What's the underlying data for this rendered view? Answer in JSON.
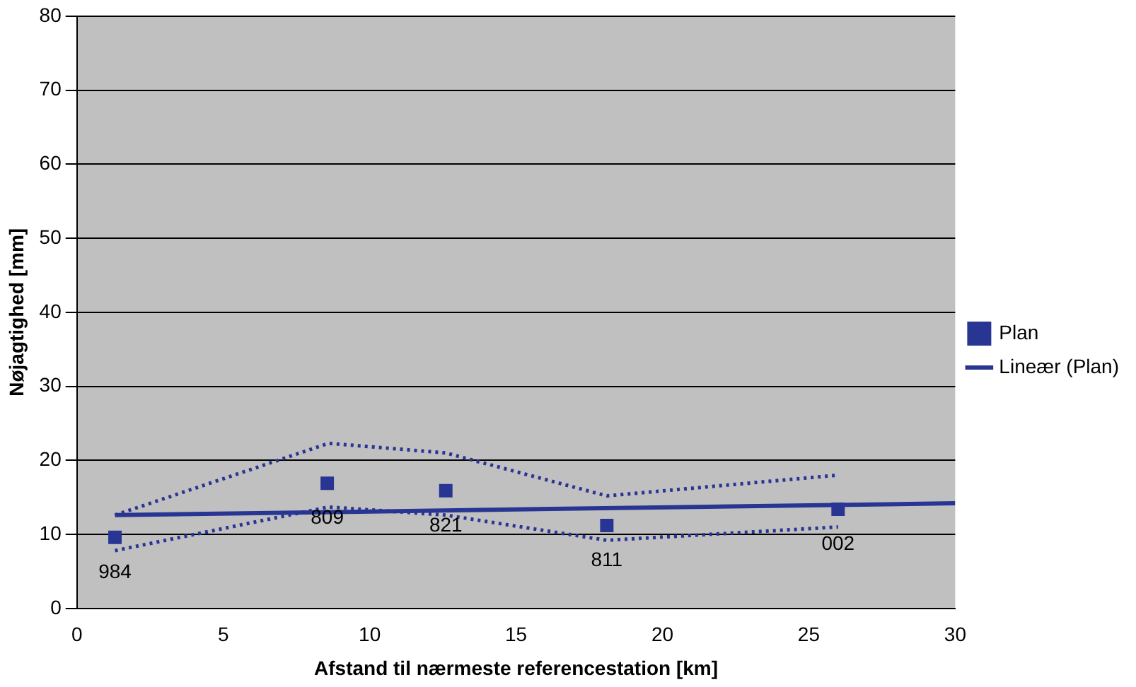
{
  "chart_data": {
    "type": "scatter",
    "xlabel": "Afstand til nærmeste referencestation [km]",
    "ylabel": "Nøjagtighed [mm]",
    "xlim": [
      0,
      30
    ],
    "xticks": [
      0,
      5,
      10,
      15,
      20,
      25,
      30
    ],
    "ylim": [
      0,
      80
    ],
    "yticks": [
      0,
      10,
      20,
      30,
      40,
      50,
      60,
      70,
      80
    ],
    "grid": "y",
    "legend": "right",
    "series": [
      {
        "name": "Plan",
        "type": "scatter",
        "marker": "square",
        "color": "#283593",
        "x": [
          1.3,
          8.55,
          12.6,
          18.1,
          26.0
        ],
        "values": [
          9.6,
          16.9,
          15.9,
          11.2,
          13.4
        ]
      },
      {
        "name": "Lineær (Plan)",
        "type": "line",
        "marker": "none",
        "line_style": "solid",
        "color": "#283593",
        "x": [
          1.3,
          30
        ],
        "values": [
          12.6,
          14.2
        ]
      },
      {
        "type": "line",
        "marker": "none",
        "line_style": "dotted",
        "color": "#283593",
        "x": [
          1.3,
          8.6,
          12.6,
          18.1,
          26.0
        ],
        "values": [
          12.6,
          22.3,
          21.0,
          15.2,
          18.0
        ]
      },
      {
        "type": "line",
        "marker": "none",
        "line_style": "dotted",
        "color": "#283593",
        "x": [
          1.3,
          8.6,
          12.6,
          18.1,
          26.0
        ],
        "values": [
          7.8,
          13.7,
          12.6,
          9.2,
          11.0
        ]
      }
    ],
    "annotations": [
      {
        "text": "984",
        "x": 1.3,
        "y": 9.6
      },
      {
        "text": "809",
        "x": 8.55,
        "y": 16.9
      },
      {
        "text": "821",
        "x": 12.6,
        "y": 15.9
      },
      {
        "text": "811",
        "x": 18.1,
        "y": 11.2
      },
      {
        "text": "002",
        "x": 26.0,
        "y": 13.4
      }
    ]
  }
}
